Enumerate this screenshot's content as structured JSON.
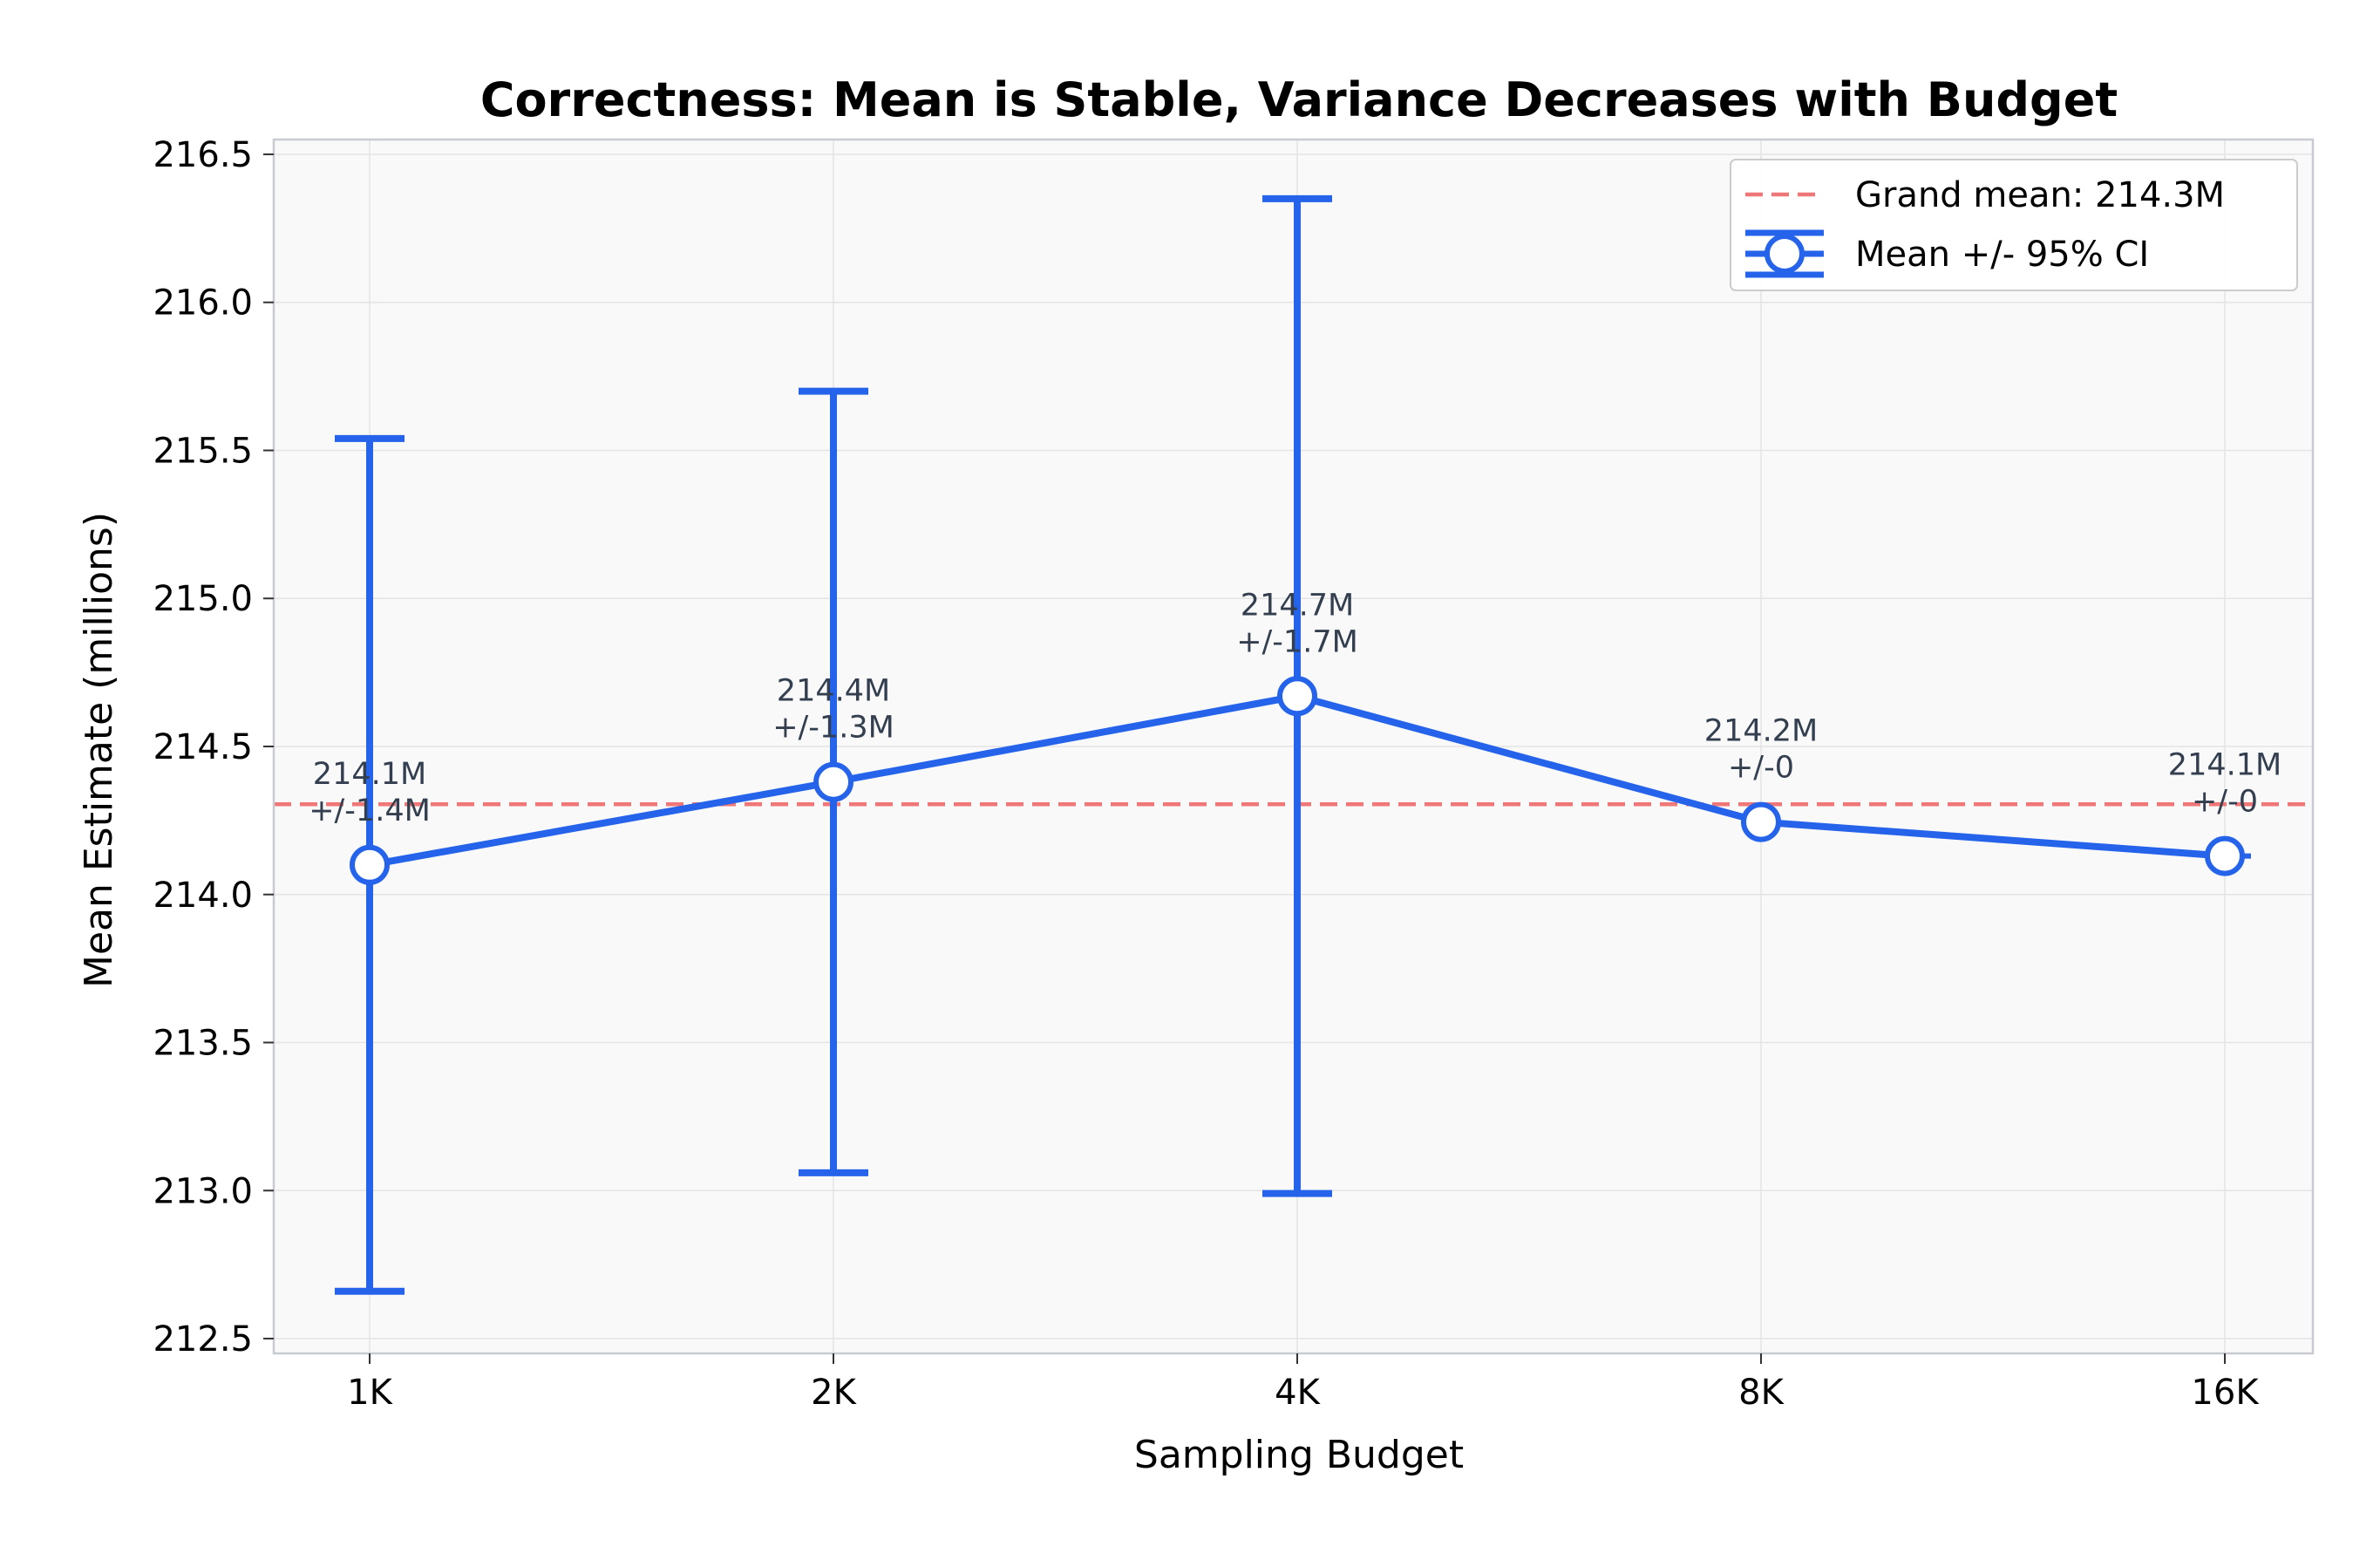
{
  "chart_data": {
    "type": "line",
    "title": "Correctness: Mean is Stable, Variance Decreases with Budget",
    "xlabel": "Sampling Budget",
    "ylabel": "Mean Estimate (millions)",
    "categories": [
      "1K",
      "2K",
      "4K",
      "8K",
      "16K"
    ],
    "ylim": [
      212.45,
      216.55
    ],
    "yticks": [
      "212.5",
      "213.0",
      "213.5",
      "214.0",
      "214.5",
      "215.0",
      "215.5",
      "216.0",
      "216.5"
    ],
    "grid": true,
    "legend_position": "top-right",
    "series": [
      {
        "name": "Mean +/- 95% CI",
        "values": [
          214.1,
          214.38,
          214.67,
          214.245,
          214.13
        ],
        "ci_low": [
          212.66,
          213.06,
          212.99,
          214.245,
          214.13
        ],
        "ci_high": [
          215.54,
          215.7,
          216.35,
          214.245,
          214.13
        ],
        "annotations": [
          [
            "214.1M",
            "+/-1.4M"
          ],
          [
            "214.4M",
            "+/-1.3M"
          ],
          [
            "214.7M",
            "+/-1.7M"
          ],
          [
            "214.2M",
            "+/-0"
          ],
          [
            "214.1M",
            "+/-0"
          ]
        ],
        "color": "#2563eb"
      }
    ],
    "reference_line": {
      "name": "Grand mean: 214.3M",
      "value": 214.305,
      "color": "#ef7777"
    },
    "colors": {
      "plot_background": "#f9f9f9",
      "grid": "#e4e4e4",
      "spine": "#c8ccd2",
      "marker_fill": "#ffffff",
      "annotation_text": "#333f4f"
    }
  }
}
